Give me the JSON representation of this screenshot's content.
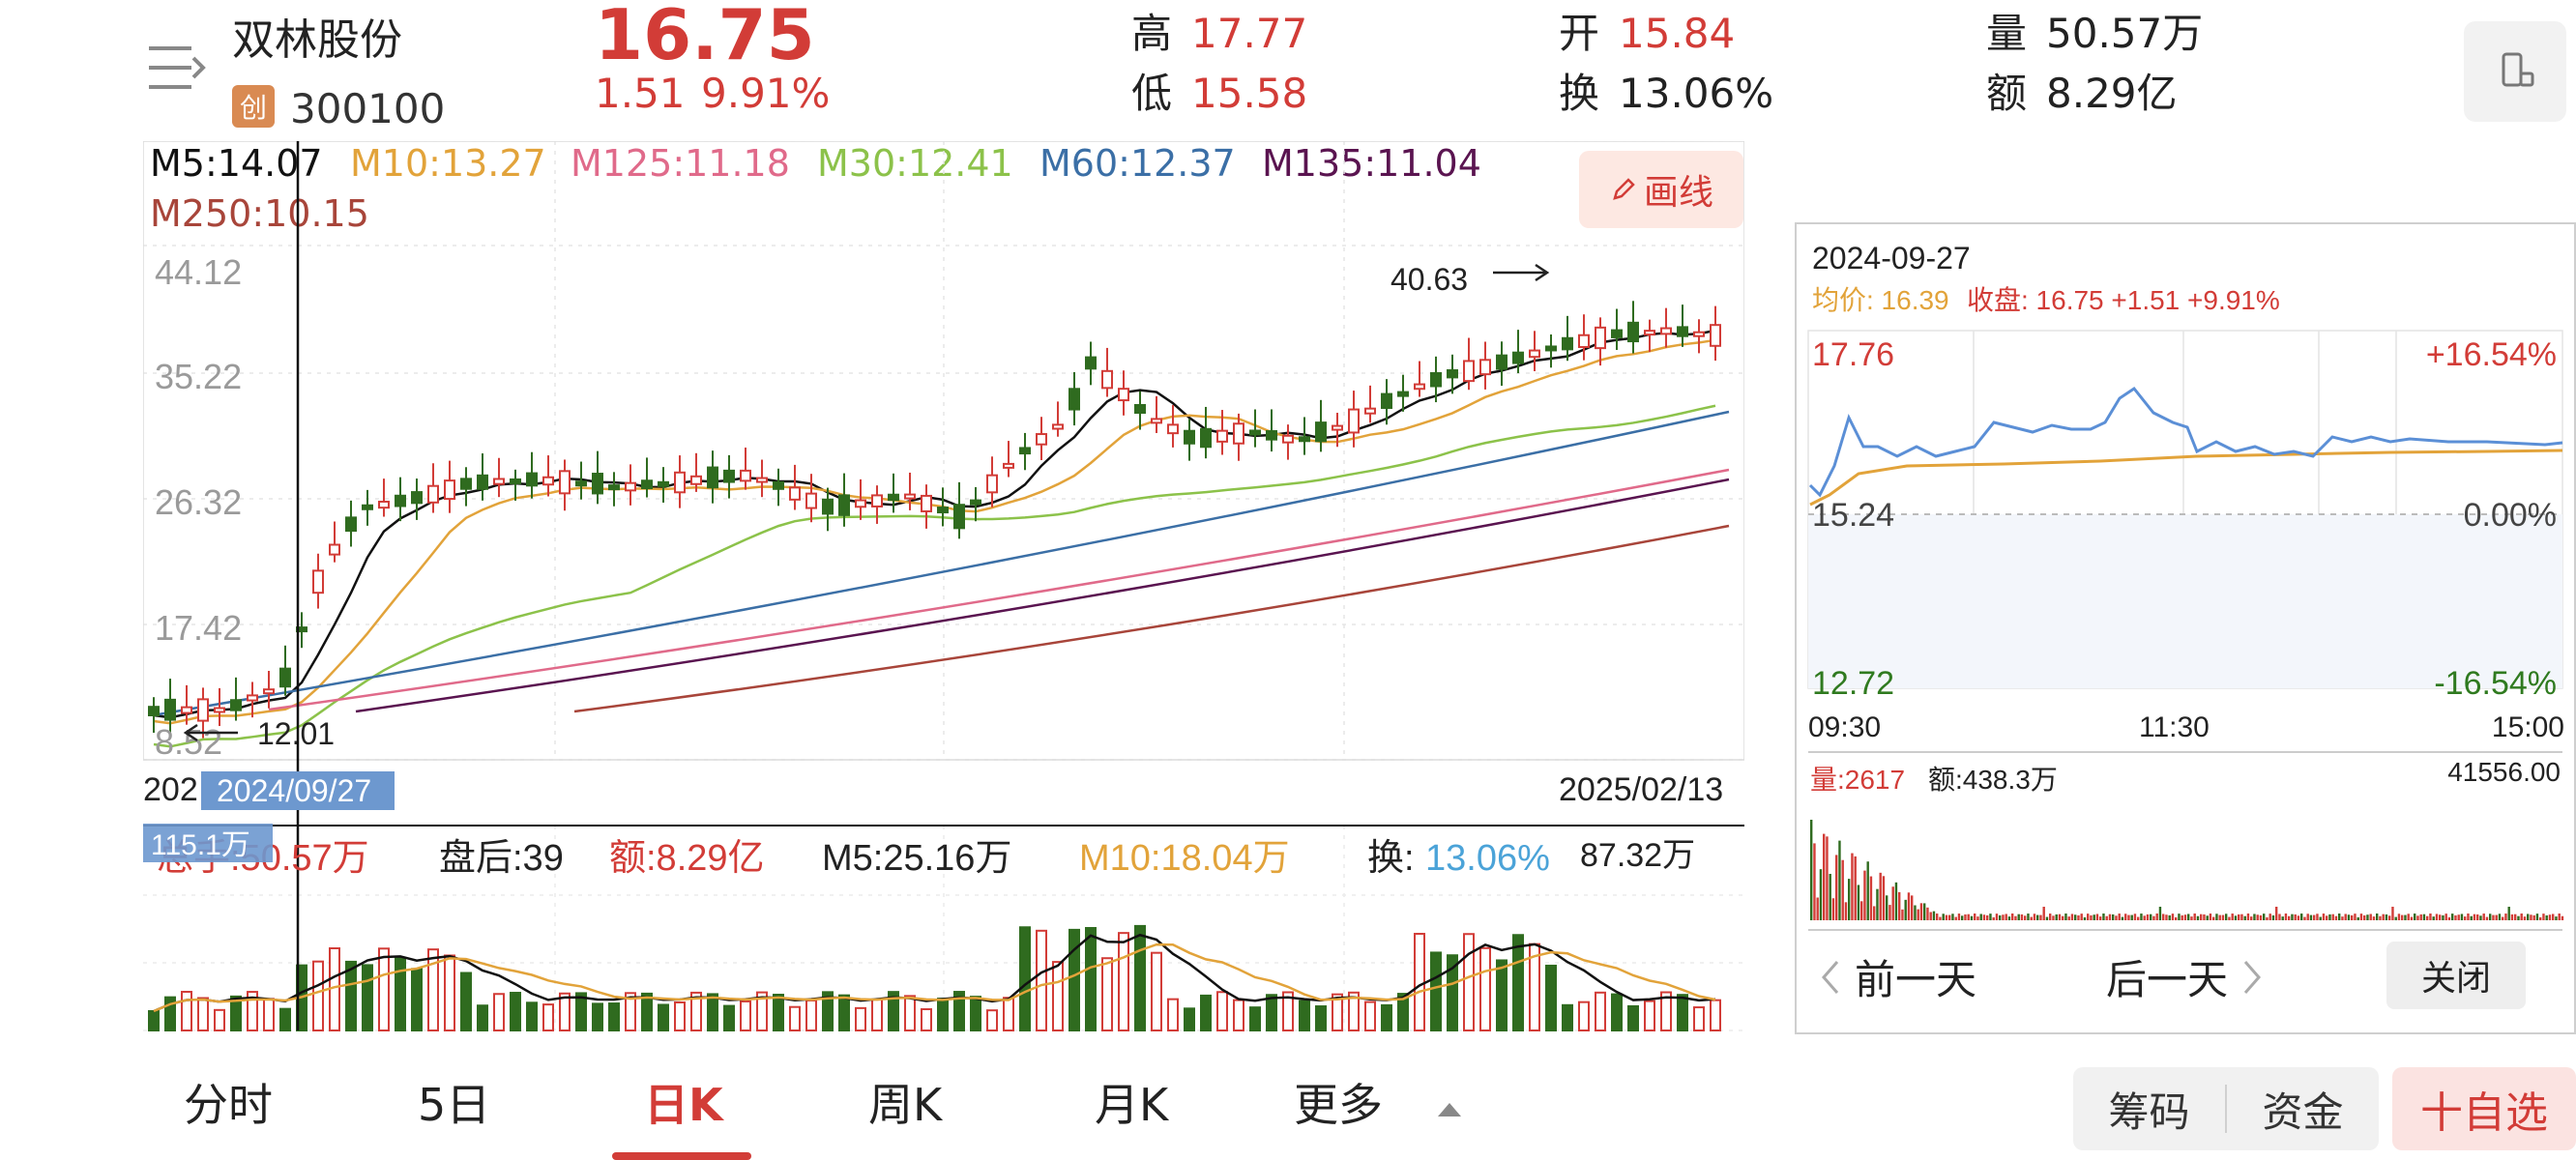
{
  "header": {
    "stock_name": "双林股份",
    "board_badge": "创",
    "stock_code": "300100",
    "last_price": "16.75",
    "change_amount": "1.51",
    "change_percent": "9.91%",
    "high_label": "高",
    "high_value": "17.77",
    "low_label": "低",
    "low_value": "15.58",
    "open_label": "开",
    "open_value": "15.84",
    "turnover_label": "换",
    "turnover_value": "13.06%",
    "volume_label": "量",
    "volume_value": "50.57万",
    "amount_label": "额",
    "amount_value": "8.29亿",
    "menu_icon": "menu-icon",
    "device_icon": "phone-landscape-icon"
  },
  "ma_legend": {
    "m5": "M5:14.07",
    "m10": "M10:13.27",
    "m125": "M125:11.18",
    "m30": "M30:12.41",
    "m60": "M60:12.37",
    "m135": "M135:11.04",
    "m250": "M250:10.15"
  },
  "draw_line_button": "画线",
  "kline": {
    "y_ticks": [
      "44.12",
      "35.22",
      "26.32",
      "17.42",
      "8.52"
    ],
    "max_annotation": "40.63",
    "min_annotation": "12.01",
    "start_date_label": "202",
    "cursor_date": "2024/09/27",
    "end_date": "2025/02/13",
    "cursor_volume": "115.1万"
  },
  "volume_info": {
    "total_hands": "总手:50.57万",
    "after_hours": "盘后:39",
    "amount": "额:8.29亿",
    "m5": "M5:25.16万",
    "m10": "M10:18.04万",
    "turnover_label": "换:",
    "turnover_value": "13.06%",
    "max_value": "87.32万"
  },
  "intraday": {
    "date": "2024-09-27",
    "avg_label": "均价: 16.39",
    "close_label": "收盘: 16.75 +1.51 +9.91%",
    "y_top": "17.76",
    "y_mid": "15.24",
    "y_bottom": "12.72",
    "pct_top": "+16.54%",
    "pct_mid": "0.00%",
    "pct_bottom": "-16.54%",
    "time_start": "09:30",
    "time_mid": "11:30",
    "time_end": "15:00",
    "volume_label": "量:2617",
    "amount_label": "额:438.3万",
    "vol_max": "41556.00",
    "prev_day": "前一天",
    "next_day": "后一天",
    "close_button": "关闭"
  },
  "tabs": [
    "分时",
    "5日",
    "日K",
    "周K",
    "月K",
    "更多"
  ],
  "active_tab": "日K",
  "actions": {
    "chips": "筹码",
    "funds": "资金",
    "add_favorite": "十自选"
  },
  "colors": {
    "up": "#d23c37",
    "down": "#2f6b1f",
    "ma5": "#111111",
    "ma10": "#e2a33a",
    "ma125": "#e06a8a",
    "ma30": "#8cc24a",
    "ma60": "#3b6fa6",
    "ma135": "#5a1450",
    "ma250": "#a8453a",
    "intraday_price": "#5b8fd6",
    "intraday_avg": "#e2a33a"
  }
}
